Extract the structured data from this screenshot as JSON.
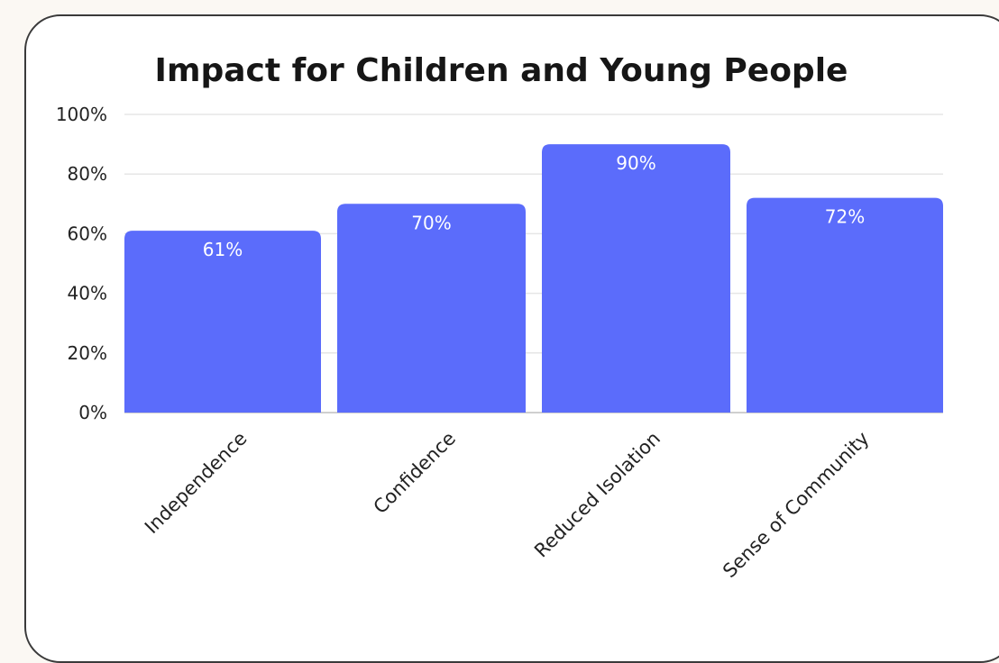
{
  "colors": {
    "bar": "#5b6cfb",
    "card_border": "#3a3a3a",
    "page_background": "#fbf8f3",
    "grid": "#e6e6e6"
  },
  "chart_data": {
    "type": "bar",
    "title": "Impact for Children and Young People",
    "xlabel": "",
    "ylabel": "",
    "categories": [
      "Independence",
      "Confidence",
      "Reduced Isolation",
      "Sense of Community"
    ],
    "values": [
      61,
      70,
      90,
      72
    ],
    "data_labels": [
      "61%",
      "70%",
      "90%",
      "72%"
    ],
    "ylim": [
      0,
      100
    ],
    "yticks": [
      0,
      20,
      40,
      60,
      80,
      100
    ],
    "ytick_labels": [
      "0%",
      "20%",
      "40%",
      "60%",
      "80%",
      "100%"
    ],
    "grid": true,
    "legend": "none"
  }
}
